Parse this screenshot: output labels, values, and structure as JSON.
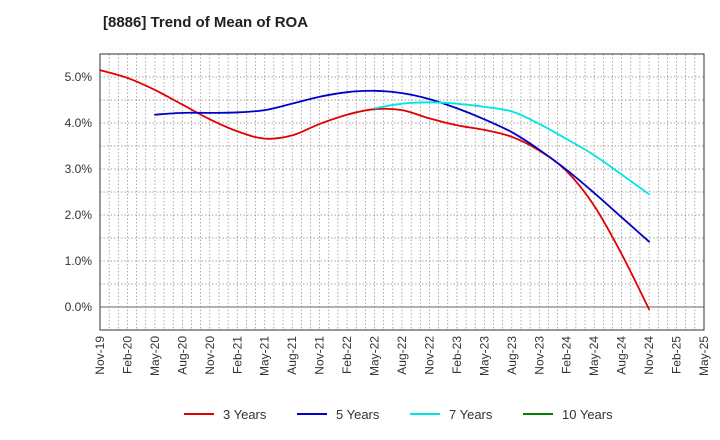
{
  "chart_data": {
    "type": "line",
    "title": "[8886]  Trend of Mean of ROA",
    "xlabel": "",
    "ylabel": "",
    "ylim": [
      -0.5,
      5.5
    ],
    "yticks": [
      0.0,
      1.0,
      2.0,
      3.0,
      4.0,
      5.0
    ],
    "ytick_labels": [
      "0.0%",
      "1.0%",
      "2.0%",
      "3.0%",
      "4.0%",
      "5.0%"
    ],
    "categories": [
      "Nov-19",
      "Feb-20",
      "May-20",
      "Aug-20",
      "Nov-20",
      "Feb-21",
      "May-21",
      "Aug-21",
      "Nov-21",
      "Feb-22",
      "May-22",
      "Aug-22",
      "Nov-22",
      "Feb-23",
      "May-23",
      "Aug-23",
      "Nov-23",
      "Feb-24",
      "May-24",
      "Aug-24",
      "Nov-24",
      "Feb-25",
      "May-25"
    ],
    "grid": true,
    "legend_position": "bottom",
    "series": [
      {
        "name": "3 Years",
        "color": "#e00000",
        "values": [
          5.15,
          4.98,
          4.72,
          4.4,
          4.08,
          3.82,
          3.66,
          3.73,
          3.98,
          4.18,
          4.3,
          4.28,
          4.1,
          3.95,
          3.85,
          3.7,
          3.4,
          2.95,
          2.2,
          1.15,
          -0.05,
          null,
          null
        ]
      },
      {
        "name": "5 Years",
        "color": "#0000c8",
        "values": [
          null,
          null,
          4.18,
          4.22,
          4.22,
          4.23,
          4.28,
          4.42,
          4.57,
          4.67,
          4.7,
          4.65,
          4.52,
          4.32,
          4.08,
          3.8,
          3.42,
          2.98,
          2.48,
          1.95,
          1.42,
          null,
          null
        ]
      },
      {
        "name": "7 Years",
        "color": "#00e5e5",
        "values": [
          null,
          null,
          null,
          null,
          null,
          null,
          null,
          null,
          null,
          null,
          4.32,
          4.42,
          4.45,
          4.42,
          4.35,
          4.25,
          3.98,
          3.65,
          3.3,
          2.88,
          2.45,
          null,
          null
        ]
      },
      {
        "name": "10 Years",
        "color": "#008000",
        "values": [
          null,
          null,
          null,
          null,
          null,
          null,
          null,
          null,
          null,
          null,
          null,
          null,
          null,
          null,
          null,
          null,
          null,
          null,
          null,
          null,
          null,
          null,
          null
        ]
      }
    ]
  }
}
